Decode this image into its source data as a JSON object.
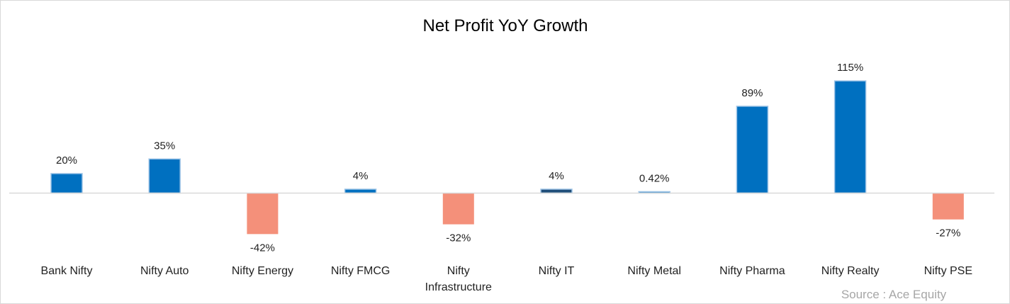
{
  "chart_data": {
    "type": "bar",
    "title": "Net Profit YoY Growth",
    "xlabel": "",
    "ylabel": "",
    "categories": [
      [
        "Bank Nifty"
      ],
      [
        "Nifty Auto"
      ],
      [
        "Nifty Energy"
      ],
      [
        "Nifty FMCG"
      ],
      [
        "Nifty",
        "Infrastructure"
      ],
      [
        "Nifty IT"
      ],
      [
        "Nifty Metal"
      ],
      [
        "Nifty Pharma"
      ],
      [
        "Nifty Realty"
      ],
      [
        "Nifty PSE"
      ]
    ],
    "values": [
      20,
      35,
      -42,
      4,
      -32,
      4,
      0.42,
      89,
      115,
      -27
    ],
    "labels": [
      "20%",
      "35%",
      "-42%",
      "4%",
      "-32%",
      "4%",
      "0.42%",
      "89%",
      "115%",
      "-27%"
    ],
    "ylim": [
      -80,
      130
    ],
    "grid": false,
    "legend": "none",
    "colors": {
      "positive": "#0070C0",
      "positive_it": "#1F4E79",
      "negative": "#F4907A",
      "bar_outline": "#9DC3E6",
      "axis": "#d9d9d9"
    }
  },
  "footer": {
    "source": "Source : Ace Equity"
  }
}
